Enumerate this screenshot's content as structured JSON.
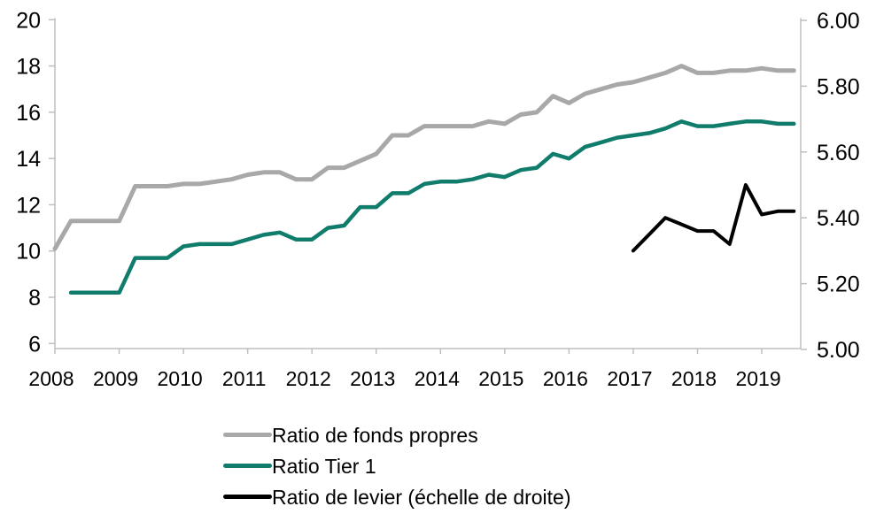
{
  "colors": {
    "background": "#ffffff",
    "axis": "#bfbfbf",
    "text": "#000000",
    "gray_series": "#a8a8a8",
    "teal_series": "#107c6c",
    "black_series": "#000000"
  },
  "chart_data": {
    "type": "line",
    "title": "",
    "frequency": "quarterly",
    "x_axis": {
      "years": [
        "2008",
        "2009",
        "2010",
        "2011",
        "2012",
        "2013",
        "2014",
        "2015",
        "2016",
        "2017",
        "2018",
        "2019"
      ]
    },
    "left_axis": {
      "ticks": [
        "20",
        "18",
        "16",
        "14",
        "12",
        "10",
        "8",
        "6"
      ],
      "min": 6,
      "max": 20
    },
    "right_axis": {
      "ticks": [
        "6.00",
        "5.80",
        "5.60",
        "5.40",
        "5.20",
        "5.00"
      ],
      "min": 5.0,
      "max": 6.0
    },
    "legend_position": "bottom",
    "series": [
      {
        "id": "ratio-fonds-propres",
        "name": "Ratio de fonds propres",
        "color": "#a8a8a8",
        "width": 5,
        "axis": "left",
        "start_quarter": 0,
        "start_period": "2008Q1",
        "values": [
          10.1,
          11.3,
          11.3,
          11.3,
          11.3,
          12.8,
          12.8,
          12.8,
          12.9,
          12.9,
          13.0,
          13.1,
          13.3,
          13.4,
          13.4,
          13.1,
          13.1,
          13.6,
          13.6,
          13.9,
          14.2,
          15.0,
          15.0,
          15.4,
          15.4,
          15.4,
          15.4,
          15.6,
          15.5,
          15.9,
          16.0,
          16.7,
          16.4,
          16.8,
          17.0,
          17.2,
          17.3,
          17.5,
          17.7,
          18.0,
          17.7,
          17.7,
          17.8,
          17.8,
          17.9,
          17.8,
          17.8
        ]
      },
      {
        "id": "ratio-tier-1",
        "name": "Ratio Tier 1",
        "color": "#107c6c",
        "width": 4.5,
        "axis": "left",
        "start_quarter": 1,
        "start_period": "2008Q2",
        "values": [
          8.2,
          8.2,
          8.2,
          8.2,
          9.7,
          9.7,
          9.7,
          10.2,
          10.3,
          10.3,
          10.3,
          10.5,
          10.7,
          10.8,
          10.5,
          10.5,
          11.0,
          11.1,
          11.9,
          11.9,
          12.5,
          12.5,
          12.9,
          13.0,
          13.0,
          13.1,
          13.3,
          13.2,
          13.5,
          13.6,
          14.2,
          14.0,
          14.5,
          14.7,
          14.9,
          15.0,
          15.1,
          15.3,
          15.6,
          15.4,
          15.4,
          15.5,
          15.6,
          15.6,
          15.5,
          15.5
        ]
      },
      {
        "id": "ratio-de-levier",
        "name": "Ratio de levier (échelle de droite)",
        "color": "#000000",
        "width": 4,
        "axis": "right",
        "start_quarter": 36,
        "start_period": "2017Q1",
        "values": [
          5.3,
          5.35,
          5.4,
          5.38,
          5.36,
          5.36,
          5.32,
          5.5,
          5.41,
          5.42,
          5.42
        ]
      }
    ]
  }
}
